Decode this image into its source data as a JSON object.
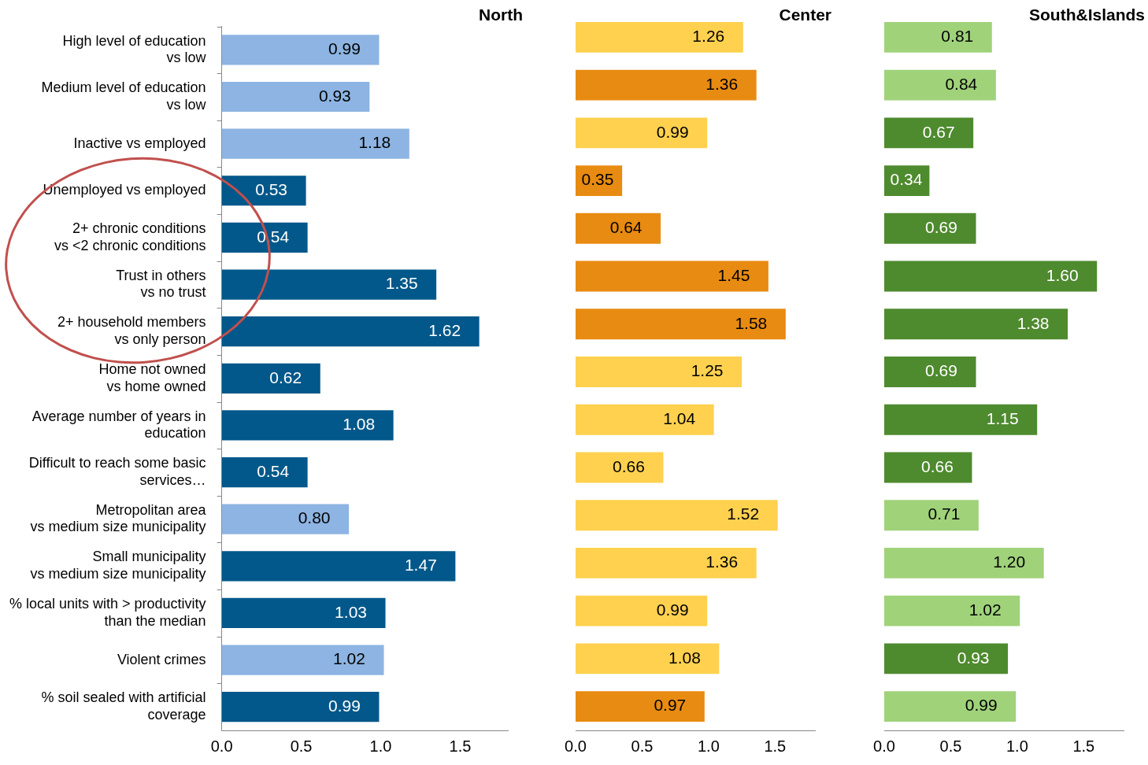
{
  "chart_data": [
    {
      "type": "bar",
      "orientation": "horizontal",
      "title": "North",
      "categories": [
        "High level of education\nvs low",
        "Medium level of education\nvs low",
        "Inactive vs employed",
        "Unemployed vs employed",
        "2+ chronic conditions\nvs <2 chronic conditions",
        "Trust in others\nvs no trust",
        "2+ household members\nvs only person",
        "Home not owned\nvs home owned",
        "Average number of years in\neducation",
        "Difficult to reach some basic\nservices…",
        "Metropolitan area\nvs medium size municipality",
        "Small municipality\nvs medium size municipality",
        "% local units with > productivity\nthan the median",
        "Violent crimes",
        "% soil sealed with artificial\ncoverage"
      ],
      "values": [
        0.99,
        0.93,
        1.18,
        0.53,
        0.54,
        1.35,
        1.62,
        0.62,
        1.08,
        0.54,
        0.8,
        1.47,
        1.03,
        1.02,
        0.99
      ],
      "value_labels": [
        "0.99",
        "0.93",
        "1.18",
        "0.53",
        "0.54",
        "1.35",
        "1.62",
        "0.62",
        "1.08",
        "0.54",
        "0.80",
        "1.47",
        "1.03",
        "1.02",
        "0.99"
      ],
      "colors": [
        "#8db4e2",
        "#8db4e2",
        "#8db4e2",
        "#02588a",
        "#02588a",
        "#02588a",
        "#02588a",
        "#02588a",
        "#02588a",
        "#02588a",
        "#8db4e2",
        "#02588a",
        "#02588a",
        "#8db4e2",
        "#02588a"
      ],
      "xlim": [
        0,
        1.8
      ],
      "xticks": [
        {
          "value": 0,
          "label": "0.0"
        },
        {
          "value": 0.5,
          "label": "0.5"
        },
        {
          "value": 1,
          "label": "1.0"
        },
        {
          "value": 1.5,
          "label": "1.5"
        }
      ],
      "grid": false,
      "legend": false
    },
    {
      "type": "bar",
      "orientation": "horizontal",
      "title": "Center",
      "tick_labels": "x",
      "categories": [
        null,
        null,
        null,
        null,
        null,
        null,
        null,
        null,
        null,
        null,
        null,
        null,
        null,
        null,
        null
      ],
      "values": [
        1.26,
        1.36,
        0.99,
        0.35,
        0.64,
        1.45,
        1.58,
        1.25,
        1.04,
        0.66,
        1.52,
        1.36,
        0.99,
        1.08,
        0.97
      ],
      "value_labels": [
        "1.26",
        "1.36",
        "0.99",
        "0.35",
        "0.64",
        "1.45",
        "1.58",
        "1.25",
        "1.04",
        "0.66",
        "1.52",
        "1.36",
        "0.99",
        "1.08",
        "0.97"
      ],
      "colors": [
        "#ffd14f",
        "#e88b12",
        "#ffd14f",
        "#e88b12",
        "#e88b12",
        "#e88b12",
        "#e88b12",
        "#ffd14f",
        "#ffd14f",
        "#ffd14f",
        "#ffd14f",
        "#ffd14f",
        "#ffd14f",
        "#ffd14f",
        "#e88b12"
      ],
      "xlim": [
        0,
        1.8
      ],
      "xticks": [
        {
          "value": 0,
          "label": "0.0"
        },
        {
          "value": 0.5,
          "label": "0.5"
        },
        {
          "value": 1,
          "label": "1.0"
        },
        {
          "value": 1.5,
          "label": "1.5"
        }
      ],
      "grid": false,
      "legend": false
    },
    {
      "type": "bar",
      "orientation": "horizontal",
      "title": "South&Islands",
      "tick_labels": "x",
      "categories": [
        null,
        null,
        null,
        null,
        null,
        null,
        null,
        null,
        null,
        null,
        null,
        null,
        null,
        null,
        null
      ],
      "values": [
        0.81,
        0.84,
        0.67,
        0.34,
        0.69,
        1.6,
        1.38,
        0.69,
        1.15,
        0.66,
        0.71,
        1.2,
        1.02,
        0.93,
        0.99
      ],
      "value_labels": [
        "0.81",
        "0.84",
        "0.67",
        "0.34",
        "0.69",
        "1.60",
        "1.38",
        "0.69",
        "1.15",
        "0.66",
        "0.71",
        "1.20",
        "1.02",
        "0.93",
        "0.99"
      ],
      "colors": [
        "#a0d27a",
        "#a0d27a",
        "#4e8a2e",
        "#4e8a2e",
        "#4e8a2e",
        "#4e8a2e",
        "#4e8a2e",
        "#4e8a2e",
        "#4e8a2e",
        "#4e8a2e",
        "#a0d27a",
        "#a0d27a",
        "#a0d27a",
        "#4e8a2e",
        "#a0d27a"
      ],
      "xlim": [
        0,
        1.8
      ],
      "xticks": [
        {
          "value": 0,
          "label": "0.0"
        },
        {
          "value": 0.5,
          "label": "0.5"
        },
        {
          "value": 1,
          "label": "1.0"
        },
        {
          "value": 1.5,
          "label": "1.5"
        }
      ],
      "grid": false,
      "legend": false
    }
  ]
}
